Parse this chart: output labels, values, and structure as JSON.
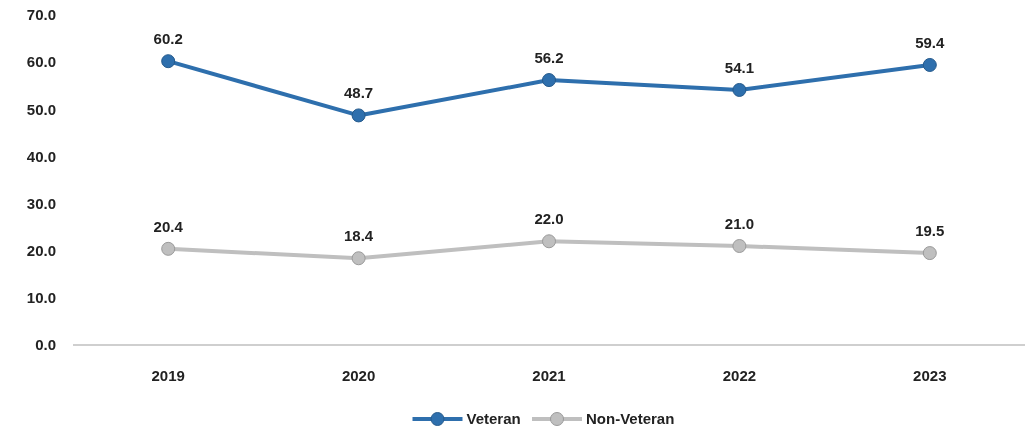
{
  "chart_data": {
    "type": "line",
    "categories": [
      "2019",
      "2020",
      "2021",
      "2022",
      "2023"
    ],
    "series": [
      {
        "name": "Veteran",
        "color": "#2e6fad",
        "values": [
          60.2,
          48.7,
          56.2,
          54.1,
          59.4
        ],
        "value_labels": [
          "60.2",
          "48.7",
          "56.2",
          "54.1",
          "59.4"
        ]
      },
      {
        "name": "Non-Veteran",
        "color": "#bfbfbf",
        "values": [
          20.4,
          18.4,
          22.0,
          21.0,
          19.5
        ],
        "value_labels": [
          "20.4",
          "18.4",
          "22.0",
          "21.0",
          "19.5"
        ]
      }
    ],
    "ylim": [
      0,
      70
    ],
    "yticks": [
      {
        "value": 0,
        "label": "0.0"
      },
      {
        "value": 10,
        "label": "10.0"
      },
      {
        "value": 20,
        "label": "20.0"
      },
      {
        "value": 30,
        "label": "30.0"
      },
      {
        "value": 40,
        "label": "40.0"
      },
      {
        "value": 50,
        "label": "50.0"
      },
      {
        "value": 60,
        "label": "60.0"
      },
      {
        "value": 70,
        "label": "70.0"
      }
    ],
    "marker": "circle",
    "line_style": "solid",
    "legend": "bottom"
  }
}
